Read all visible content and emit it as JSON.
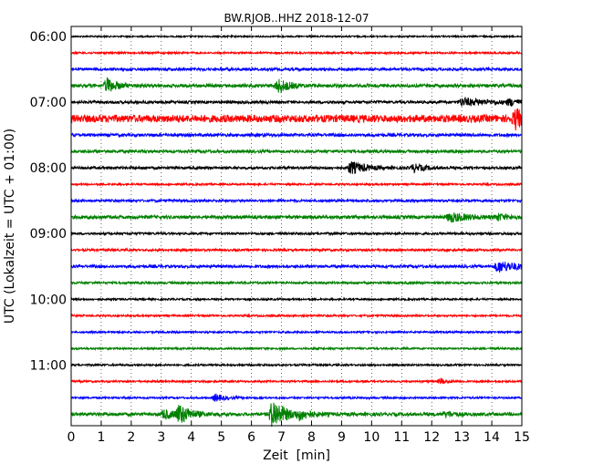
{
  "chart_data": {
    "type": "line",
    "title": "BW.RJOB..HHZ 2018-12-07",
    "xlabel": "Zeit  [min]",
    "ylabel": "UTC (Lokalzeit = UTC + 01:00)",
    "xlim": [
      0,
      15
    ],
    "x_ticks": [
      0,
      1,
      2,
      3,
      4,
      5,
      6,
      7,
      8,
      9,
      10,
      11,
      12,
      13,
      14,
      15
    ],
    "x_tick_labels": [
      "0",
      "1",
      "2",
      "3",
      "4",
      "5",
      "6",
      "7",
      "8",
      "9",
      "10",
      "11",
      "12",
      "13",
      "14",
      "15"
    ],
    "y_tick_labels": [
      "06:00",
      "07:00",
      "08:00",
      "09:00",
      "10:00",
      "11:00"
    ],
    "grid": "vertical dotted lines at each minute",
    "colors": [
      "#000000",
      "#ff0000",
      "#0000ff",
      "#008000"
    ],
    "traces": [
      {
        "start": "06:00",
        "color": "#000000",
        "noise": 0.8,
        "events": []
      },
      {
        "start": "06:15",
        "color": "#ff0000",
        "noise": 1.0,
        "events": []
      },
      {
        "start": "06:30",
        "color": "#0000ff",
        "noise": 1.5,
        "events": []
      },
      {
        "start": "06:45",
        "color": "#008000",
        "noise": 1.8,
        "events": [
          {
            "t": 1.2,
            "amp": 8,
            "dur": 0.5
          },
          {
            "t": 6.9,
            "amp": 7,
            "dur": 0.6
          }
        ]
      },
      {
        "start": "07:00",
        "color": "#000000",
        "noise": 1.5,
        "events": [
          {
            "t": 13.0,
            "amp": 4,
            "dur": 1.5
          },
          {
            "t": 14.6,
            "amp": 3,
            "dur": 0.5
          }
        ]
      },
      {
        "start": "07:15",
        "color": "#ff0000",
        "noise": 4.0,
        "events": [
          {
            "t": 14.8,
            "amp": 10,
            "dur": 0.4
          }
        ]
      },
      {
        "start": "07:30",
        "color": "#0000ff",
        "noise": 1.6,
        "events": []
      },
      {
        "start": "07:45",
        "color": "#008000",
        "noise": 1.6,
        "events": []
      },
      {
        "start": "08:00",
        "color": "#000000",
        "noise": 1.4,
        "events": [
          {
            "t": 9.3,
            "amp": 7,
            "dur": 0.8
          },
          {
            "t": 11.4,
            "amp": 4,
            "dur": 0.6
          }
        ]
      },
      {
        "start": "08:15",
        "color": "#ff0000",
        "noise": 1.0,
        "events": []
      },
      {
        "start": "08:30",
        "color": "#0000ff",
        "noise": 1.3,
        "events": []
      },
      {
        "start": "08:45",
        "color": "#008000",
        "noise": 1.8,
        "events": [
          {
            "t": 12.6,
            "amp": 5,
            "dur": 1.0
          },
          {
            "t": 14.2,
            "amp": 3,
            "dur": 0.6
          }
        ]
      },
      {
        "start": "09:00",
        "color": "#000000",
        "noise": 1.2,
        "events": []
      },
      {
        "start": "09:15",
        "color": "#ff0000",
        "noise": 1.2,
        "events": []
      },
      {
        "start": "09:30",
        "color": "#0000ff",
        "noise": 1.5,
        "events": [
          {
            "t": 14.2,
            "amp": 6,
            "dur": 1.2
          }
        ]
      },
      {
        "start": "09:45",
        "color": "#008000",
        "noise": 1.2,
        "events": []
      },
      {
        "start": "10:00",
        "color": "#000000",
        "noise": 1.0,
        "events": []
      },
      {
        "start": "10:15",
        "color": "#ff0000",
        "noise": 1.0,
        "events": []
      },
      {
        "start": "10:30",
        "color": "#0000ff",
        "noise": 1.0,
        "events": []
      },
      {
        "start": "10:45",
        "color": "#008000",
        "noise": 1.0,
        "events": []
      },
      {
        "start": "11:00",
        "color": "#000000",
        "noise": 1.0,
        "events": []
      },
      {
        "start": "11:15",
        "color": "#ff0000",
        "noise": 1.0,
        "events": [
          {
            "t": 12.3,
            "amp": 3,
            "dur": 0.4
          }
        ]
      },
      {
        "start": "11:30",
        "color": "#0000ff",
        "noise": 1.0,
        "events": [
          {
            "t": 4.8,
            "amp": 4,
            "dur": 0.5
          }
        ]
      },
      {
        "start": "11:45",
        "color": "#008000",
        "noise": 1.8,
        "events": [
          {
            "t": 3.1,
            "amp": 5,
            "dur": 0.6
          },
          {
            "t": 3.6,
            "amp": 10,
            "dur": 0.6
          },
          {
            "t": 6.7,
            "amp": 16,
            "dur": 0.7
          },
          {
            "t": 7.6,
            "amp": 4,
            "dur": 0.6
          },
          {
            "t": 12.5,
            "amp": 3,
            "dur": 0.4
          }
        ]
      }
    ]
  }
}
